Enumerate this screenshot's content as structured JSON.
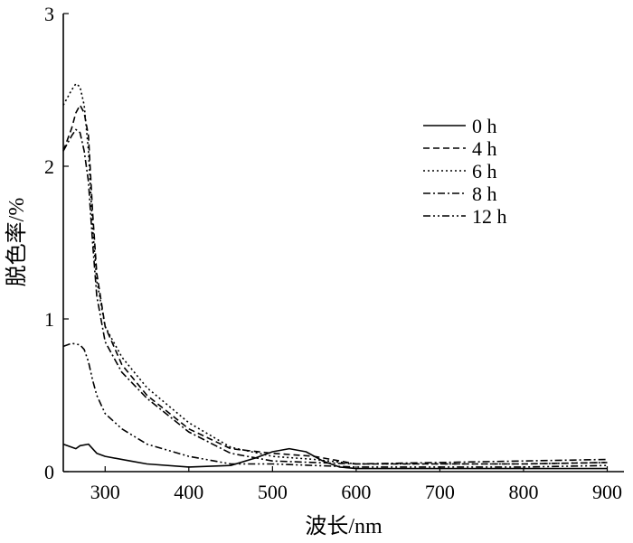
{
  "chart_data": {
    "type": "line",
    "title": "",
    "xlabel": "波长/nm",
    "ylabel": "脱色率/%",
    "xlim": [
      250,
      920
    ],
    "ylim": [
      0,
      3
    ],
    "xticks": [
      300,
      400,
      500,
      600,
      700,
      800,
      900
    ],
    "yticks": [
      0,
      1,
      2,
      3
    ],
    "grid": false,
    "legend_position": "top-right",
    "series": [
      {
        "name": "0 h",
        "dash": "solid",
        "x": [
          250,
          265,
          270,
          280,
          290,
          300,
          330,
          350,
          400,
          450,
          480,
          500,
          520,
          540,
          560,
          580,
          600,
          700,
          800,
          900
        ],
        "y": [
          0.18,
          0.15,
          0.17,
          0.18,
          0.12,
          0.1,
          0.07,
          0.05,
          0.03,
          0.04,
          0.09,
          0.13,
          0.15,
          0.13,
          0.07,
          0.03,
          0.02,
          0.02,
          0.02,
          0.02
        ]
      },
      {
        "name": "4 h",
        "dash": "dashed",
        "x": [
          250,
          260,
          265,
          270,
          275,
          280,
          285,
          290,
          300,
          320,
          350,
          400,
          450,
          500,
          550,
          600,
          700,
          800,
          900
        ],
        "y": [
          2.1,
          2.25,
          2.35,
          2.4,
          2.35,
          2.2,
          1.7,
          1.3,
          0.95,
          0.7,
          0.5,
          0.28,
          0.15,
          0.12,
          0.1,
          0.05,
          0.05,
          0.05,
          0.06
        ]
      },
      {
        "name": "6 h",
        "dash": "dotted",
        "x": [
          250,
          260,
          265,
          270,
          275,
          280,
          285,
          290,
          300,
          320,
          350,
          400,
          450,
          500,
          550,
          600,
          700,
          800,
          900
        ],
        "y": [
          2.4,
          2.5,
          2.54,
          2.52,
          2.4,
          2.1,
          1.6,
          1.25,
          0.95,
          0.75,
          0.55,
          0.32,
          0.16,
          0.1,
          0.08,
          0.05,
          0.05,
          0.05,
          0.06
        ]
      },
      {
        "name": "8 h",
        "dash": "dashdot",
        "x": [
          250,
          260,
          265,
          270,
          275,
          280,
          285,
          290,
          300,
          320,
          350,
          400,
          450,
          500,
          550,
          600,
          700,
          800,
          900
        ],
        "y": [
          2.1,
          2.2,
          2.24,
          2.22,
          2.1,
          1.9,
          1.5,
          1.15,
          0.85,
          0.65,
          0.48,
          0.26,
          0.12,
          0.07,
          0.06,
          0.05,
          0.06,
          0.07,
          0.08
        ]
      },
      {
        "name": "12 h",
        "dash": "dashdotdot",
        "x": [
          250,
          260,
          270,
          275,
          280,
          285,
          290,
          300,
          320,
          350,
          400,
          450,
          500,
          550,
          600,
          700,
          800,
          900
        ],
        "y": [
          0.82,
          0.84,
          0.83,
          0.8,
          0.72,
          0.6,
          0.5,
          0.38,
          0.28,
          0.18,
          0.1,
          0.05,
          0.05,
          0.04,
          0.03,
          0.03,
          0.03,
          0.04
        ]
      }
    ]
  }
}
